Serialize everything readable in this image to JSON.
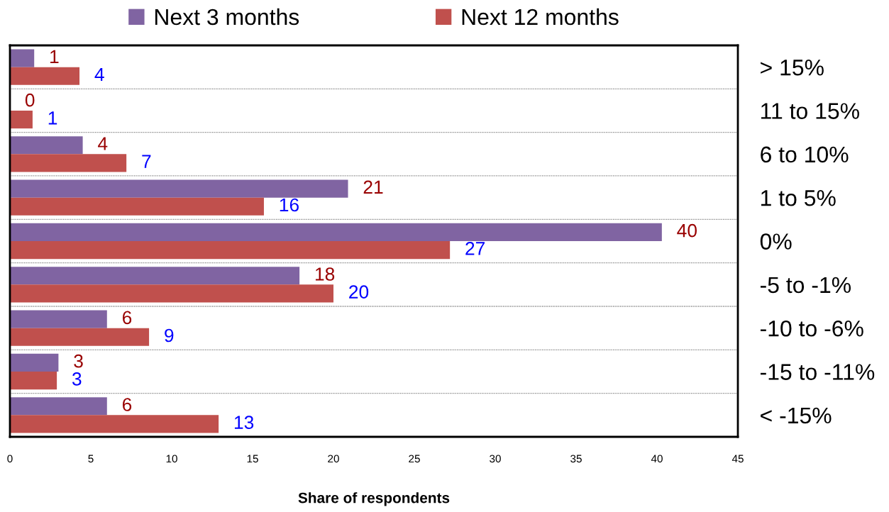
{
  "chart_data": {
    "type": "bar",
    "orientation": "horizontal",
    "categories": [
      "> 15%",
      "11 to 15%",
      "6 to 10%",
      "1 to 5%",
      "0%",
      "-5 to -1%",
      "-10 to -6%",
      "-15 to -11%",
      "< -15%"
    ],
    "series": [
      {
        "name": "Next 3 months",
        "color": "#8064a2",
        "values": [
          1.5,
          0,
          4.5,
          20.9,
          40.3,
          17.9,
          6.0,
          3.0,
          6.0
        ],
        "value_labels": [
          "1",
          "0",
          "4",
          "21",
          "40",
          "18",
          "6",
          "3",
          "6"
        ]
      },
      {
        "name": "Next 12 months",
        "color": "#c0504d",
        "values": [
          4.3,
          1.4,
          7.2,
          15.7,
          27.2,
          20.0,
          8.6,
          2.9,
          12.9
        ],
        "value_labels": [
          "4",
          "1",
          "7",
          "16",
          "27",
          "20",
          "9",
          "3",
          "13"
        ]
      }
    ],
    "xlabel": "Share of respondents",
    "xlim": [
      0,
      45
    ],
    "xticks": [
      0,
      5,
      10,
      15,
      20,
      25,
      30,
      35,
      40,
      45
    ],
    "grid": "y",
    "legend": "top"
  }
}
